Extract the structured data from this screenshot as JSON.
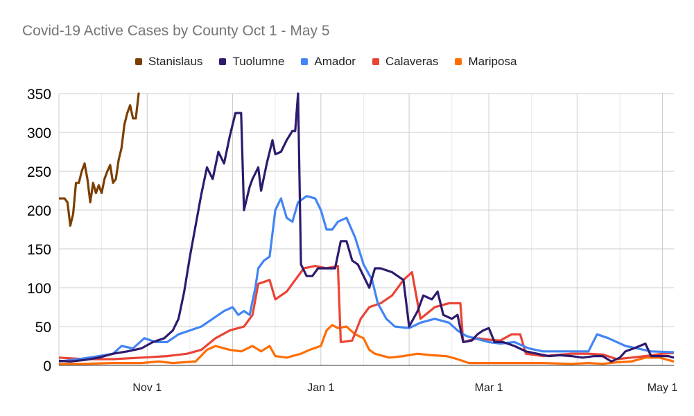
{
  "chart_data": {
    "type": "line",
    "title": "Covid-19 Active Cases by County Oct 1 - May 5",
    "ylim": [
      0,
      350
    ],
    "y_ticks": [
      "0",
      "50",
      "100",
      "150",
      "200",
      "250",
      "300",
      "350"
    ],
    "x_range": [
      "2020-10-01",
      "2021-05-05"
    ],
    "x_ticks": [
      {
        "date": "2020-11-01",
        "label": "Nov 1"
      },
      {
        "date": "2021-01-01",
        "label": "Jan 1"
      },
      {
        "date": "2021-03-01",
        "label": "Mar 1"
      },
      {
        "date": "2021-05-01",
        "label": "May 1"
      }
    ],
    "grid": true,
    "legend_position": "top",
    "series": [
      {
        "name": "Stanislaus",
        "color": "#7b3f00",
        "points": [
          [
            "2020-10-01",
            215
          ],
          [
            "2020-10-03",
            215
          ],
          [
            "2020-10-04",
            210
          ],
          [
            "2020-10-05",
            180
          ],
          [
            "2020-10-06",
            195
          ],
          [
            "2020-10-07",
            235
          ],
          [
            "2020-10-08",
            235
          ],
          [
            "2020-10-09",
            250
          ],
          [
            "2020-10-10",
            260
          ],
          [
            "2020-10-11",
            240
          ],
          [
            "2020-10-12",
            210
          ],
          [
            "2020-10-13",
            235
          ],
          [
            "2020-10-14",
            222
          ],
          [
            "2020-10-15",
            232
          ],
          [
            "2020-10-16",
            222
          ],
          [
            "2020-10-17",
            240
          ],
          [
            "2020-10-18",
            250
          ],
          [
            "2020-10-19",
            258
          ],
          [
            "2020-10-20",
            235
          ],
          [
            "2020-10-21",
            240
          ],
          [
            "2020-10-22",
            265
          ],
          [
            "2020-10-23",
            280
          ],
          [
            "2020-10-24",
            310
          ],
          [
            "2020-10-25",
            325
          ],
          [
            "2020-10-26",
            335
          ],
          [
            "2020-10-27",
            318
          ],
          [
            "2020-10-28",
            318
          ],
          [
            "2020-10-29",
            350
          ]
        ]
      },
      {
        "name": "Tuolumne",
        "color": "#2e1a6e",
        "points": [
          [
            "2020-10-01",
            6
          ],
          [
            "2020-10-05",
            5
          ],
          [
            "2020-10-10",
            7
          ],
          [
            "2020-10-15",
            10
          ],
          [
            "2020-10-20",
            15
          ],
          [
            "2020-10-25",
            18
          ],
          [
            "2020-10-30",
            22
          ],
          [
            "2020-11-03",
            30
          ],
          [
            "2020-11-07",
            35
          ],
          [
            "2020-11-10",
            45
          ],
          [
            "2020-11-12",
            60
          ],
          [
            "2020-11-14",
            95
          ],
          [
            "2020-11-16",
            140
          ],
          [
            "2020-11-18",
            180
          ],
          [
            "2020-11-20",
            220
          ],
          [
            "2020-11-22",
            255
          ],
          [
            "2020-11-24",
            240
          ],
          [
            "2020-11-26",
            275
          ],
          [
            "2020-11-28",
            260
          ],
          [
            "2020-11-30",
            295
          ],
          [
            "2020-12-02",
            325
          ],
          [
            "2020-12-04",
            325
          ],
          [
            "2020-12-05",
            200
          ],
          [
            "2020-12-07",
            230
          ],
          [
            "2020-12-08",
            240
          ],
          [
            "2020-12-10",
            255
          ],
          [
            "2020-12-11",
            225
          ],
          [
            "2020-12-13",
            260
          ],
          [
            "2020-12-15",
            290
          ],
          [
            "2020-12-16",
            272
          ],
          [
            "2020-12-18",
            275
          ],
          [
            "2020-12-20",
            290
          ],
          [
            "2020-12-22",
            302
          ],
          [
            "2020-12-23",
            302
          ],
          [
            "2020-12-24",
            350
          ],
          [
            "2020-12-25",
            130
          ],
          [
            "2020-12-27",
            115
          ],
          [
            "2020-12-29",
            115
          ],
          [
            "2020-12-31",
            125
          ],
          [
            "2021-01-02",
            125
          ],
          [
            "2021-01-04",
            125
          ],
          [
            "2021-01-06",
            125
          ],
          [
            "2021-01-08",
            160
          ],
          [
            "2021-01-10",
            160
          ],
          [
            "2021-01-12",
            135
          ],
          [
            "2021-01-14",
            130
          ],
          [
            "2021-01-16",
            115
          ],
          [
            "2021-01-18",
            100
          ],
          [
            "2021-01-20",
            125
          ],
          [
            "2021-01-22",
            125
          ],
          [
            "2021-01-26",
            120
          ],
          [
            "2021-01-30",
            110
          ],
          [
            "2021-02-01",
            50
          ],
          [
            "2021-02-04",
            70
          ],
          [
            "2021-02-06",
            90
          ],
          [
            "2021-02-09",
            85
          ],
          [
            "2021-02-11",
            95
          ],
          [
            "2021-02-13",
            65
          ],
          [
            "2021-02-16",
            60
          ],
          [
            "2021-02-18",
            65
          ],
          [
            "2021-02-20",
            30
          ],
          [
            "2021-02-23",
            32
          ],
          [
            "2021-02-25",
            40
          ],
          [
            "2021-02-27",
            45
          ],
          [
            "2021-03-01",
            48
          ],
          [
            "2021-03-03",
            30
          ],
          [
            "2021-03-06",
            30
          ],
          [
            "2021-03-10",
            25
          ],
          [
            "2021-03-14",
            18
          ],
          [
            "2021-03-18",
            15
          ],
          [
            "2021-03-22",
            12
          ],
          [
            "2021-03-26",
            13
          ],
          [
            "2021-03-30",
            12
          ],
          [
            "2021-04-03",
            10
          ],
          [
            "2021-04-07",
            12
          ],
          [
            "2021-04-10",
            12
          ],
          [
            "2021-04-13",
            5
          ],
          [
            "2021-04-16",
            10
          ],
          [
            "2021-04-18",
            18
          ],
          [
            "2021-04-21",
            22
          ],
          [
            "2021-04-23",
            25
          ],
          [
            "2021-04-25",
            28
          ],
          [
            "2021-04-27",
            12
          ],
          [
            "2021-04-30",
            12
          ],
          [
            "2021-05-03",
            12
          ],
          [
            "2021-05-05",
            10
          ]
        ]
      },
      {
        "name": "Amador",
        "color": "#4285f4",
        "points": [
          [
            "2020-10-01",
            5
          ],
          [
            "2020-10-08",
            8
          ],
          [
            "2020-10-15",
            12
          ],
          [
            "2020-10-20",
            15
          ],
          [
            "2020-10-23",
            25
          ],
          [
            "2020-10-27",
            22
          ],
          [
            "2020-10-31",
            35
          ],
          [
            "2020-11-04",
            30
          ],
          [
            "2020-11-08",
            30
          ],
          [
            "2020-11-12",
            40
          ],
          [
            "2020-11-16",
            45
          ],
          [
            "2020-11-20",
            50
          ],
          [
            "2020-11-24",
            60
          ],
          [
            "2020-11-28",
            70
          ],
          [
            "2020-12-01",
            75
          ],
          [
            "2020-12-03",
            65
          ],
          [
            "2020-12-05",
            70
          ],
          [
            "2020-12-07",
            65
          ],
          [
            "2020-12-09",
            100
          ],
          [
            "2020-12-10",
            125
          ],
          [
            "2020-12-12",
            135
          ],
          [
            "2020-12-14",
            140
          ],
          [
            "2020-12-16",
            200
          ],
          [
            "2020-12-18",
            215
          ],
          [
            "2020-12-20",
            190
          ],
          [
            "2020-12-22",
            185
          ],
          [
            "2020-12-24",
            210
          ],
          [
            "2020-12-27",
            218
          ],
          [
            "2020-12-30",
            215
          ],
          [
            "2021-01-01",
            200
          ],
          [
            "2021-01-03",
            175
          ],
          [
            "2021-01-05",
            175
          ],
          [
            "2021-01-07",
            185
          ],
          [
            "2021-01-10",
            190
          ],
          [
            "2021-01-13",
            165
          ],
          [
            "2021-01-16",
            130
          ],
          [
            "2021-01-19",
            110
          ],
          [
            "2021-01-21",
            80
          ],
          [
            "2021-01-24",
            60
          ],
          [
            "2021-01-27",
            50
          ],
          [
            "2021-02-01",
            48
          ],
          [
            "2021-02-05",
            55
          ],
          [
            "2021-02-10",
            60
          ],
          [
            "2021-02-15",
            55
          ],
          [
            "2021-02-18",
            45
          ],
          [
            "2021-02-21",
            38
          ],
          [
            "2021-02-24",
            35
          ],
          [
            "2021-03-01",
            30
          ],
          [
            "2021-03-05",
            28
          ],
          [
            "2021-03-10",
            30
          ],
          [
            "2021-03-15",
            22
          ],
          [
            "2021-03-20",
            18
          ],
          [
            "2021-03-25",
            18
          ],
          [
            "2021-04-01",
            18
          ],
          [
            "2021-04-05",
            18
          ],
          [
            "2021-04-08",
            40
          ],
          [
            "2021-04-12",
            35
          ],
          [
            "2021-04-15",
            30
          ],
          [
            "2021-04-18",
            25
          ],
          [
            "2021-04-22",
            22
          ],
          [
            "2021-04-27",
            18
          ],
          [
            "2021-05-05",
            17
          ]
        ]
      },
      {
        "name": "Calaveras",
        "color": "#ea4335",
        "points": [
          [
            "2020-10-01",
            10
          ],
          [
            "2020-10-10",
            8
          ],
          [
            "2020-10-20",
            8
          ],
          [
            "2020-10-30",
            10
          ],
          [
            "2020-11-08",
            12
          ],
          [
            "2020-11-15",
            15
          ],
          [
            "2020-11-20",
            20
          ],
          [
            "2020-11-25",
            35
          ],
          [
            "2020-11-30",
            45
          ],
          [
            "2020-12-05",
            50
          ],
          [
            "2020-12-08",
            65
          ],
          [
            "2020-12-10",
            105
          ],
          [
            "2020-12-14",
            110
          ],
          [
            "2020-12-16",
            85
          ],
          [
            "2020-12-20",
            95
          ],
          [
            "2020-12-23",
            110
          ],
          [
            "2020-12-26",
            125
          ],
          [
            "2020-12-30",
            128
          ],
          [
            "2021-01-03",
            125
          ],
          [
            "2021-01-07",
            128
          ],
          [
            "2021-01-08",
            30
          ],
          [
            "2021-01-12",
            32
          ],
          [
            "2021-01-15",
            60
          ],
          [
            "2021-01-18",
            75
          ],
          [
            "2021-01-22",
            80
          ],
          [
            "2021-01-26",
            90
          ],
          [
            "2021-01-30",
            110
          ],
          [
            "2021-02-02",
            120
          ],
          [
            "2021-02-05",
            60
          ],
          [
            "2021-02-10",
            75
          ],
          [
            "2021-02-15",
            80
          ],
          [
            "2021-02-19",
            80
          ],
          [
            "2021-02-20",
            30
          ],
          [
            "2021-02-25",
            35
          ],
          [
            "2021-03-01",
            33
          ],
          [
            "2021-03-05",
            32
          ],
          [
            "2021-03-09",
            40
          ],
          [
            "2021-03-12",
            40
          ],
          [
            "2021-03-14",
            15
          ],
          [
            "2021-03-20",
            12
          ],
          [
            "2021-03-30",
            15
          ],
          [
            "2021-04-05",
            15
          ],
          [
            "2021-04-10",
            14
          ],
          [
            "2021-04-15",
            8
          ],
          [
            "2021-04-20",
            10
          ],
          [
            "2021-04-25",
            12
          ],
          [
            "2021-05-01",
            15
          ],
          [
            "2021-05-05",
            16
          ]
        ]
      },
      {
        "name": "Mariposa",
        "color": "#ff6d01",
        "points": [
          [
            "2020-10-01",
            2
          ],
          [
            "2020-10-10",
            2
          ],
          [
            "2020-10-20",
            3
          ],
          [
            "2020-10-30",
            3
          ],
          [
            "2020-11-05",
            5
          ],
          [
            "2020-11-10",
            3
          ],
          [
            "2020-11-18",
            5
          ],
          [
            "2020-11-22",
            20
          ],
          [
            "2020-11-25",
            25
          ],
          [
            "2020-11-30",
            20
          ],
          [
            "2020-12-04",
            18
          ],
          [
            "2020-12-08",
            25
          ],
          [
            "2020-12-11",
            18
          ],
          [
            "2020-12-14",
            25
          ],
          [
            "2020-12-16",
            12
          ],
          [
            "2020-12-20",
            10
          ],
          [
            "2020-12-25",
            15
          ],
          [
            "2020-12-28",
            20
          ],
          [
            "2021-01-01",
            25
          ],
          [
            "2021-01-03",
            45
          ],
          [
            "2021-01-05",
            52
          ],
          [
            "2021-01-07",
            48
          ],
          [
            "2021-01-10",
            50
          ],
          [
            "2021-01-13",
            40
          ],
          [
            "2021-01-16",
            35
          ],
          [
            "2021-01-18",
            20
          ],
          [
            "2021-01-20",
            15
          ],
          [
            "2021-01-25",
            10
          ],
          [
            "2021-01-30",
            12
          ],
          [
            "2021-02-04",
            15
          ],
          [
            "2021-02-09",
            13
          ],
          [
            "2021-02-14",
            12
          ],
          [
            "2021-02-18",
            8
          ],
          [
            "2021-02-22",
            3
          ],
          [
            "2021-03-01",
            3
          ],
          [
            "2021-03-10",
            3
          ],
          [
            "2021-03-20",
            3
          ],
          [
            "2021-03-30",
            2
          ],
          [
            "2021-04-05",
            3
          ],
          [
            "2021-04-10",
            2
          ],
          [
            "2021-04-15",
            4
          ],
          [
            "2021-04-20",
            5
          ],
          [
            "2021-04-25",
            10
          ],
          [
            "2021-04-30",
            10
          ],
          [
            "2021-05-05",
            5
          ]
        ]
      }
    ]
  }
}
